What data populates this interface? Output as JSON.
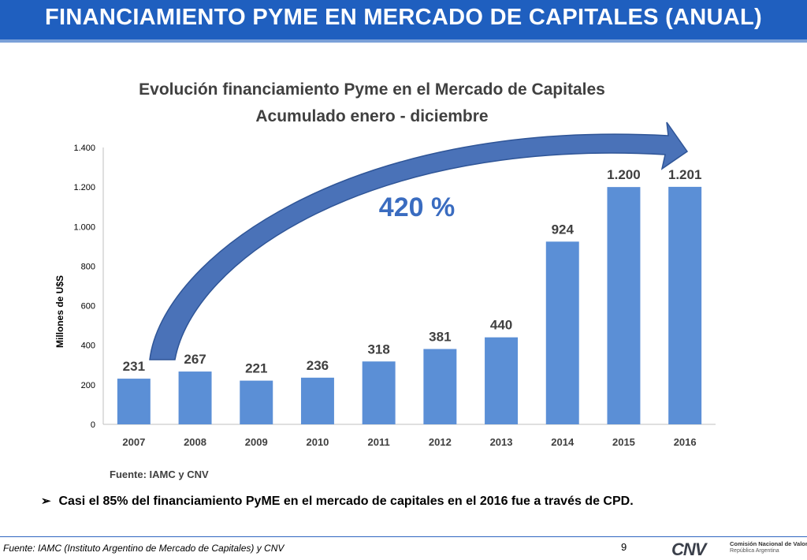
{
  "slide": {
    "title": "FINANCIAMIENTO PYME EN MERCADO DE CAPITALES (ANUAL)",
    "bullet_marker": "➢",
    "bullet": "Casi el 85% del financiamiento PyME en el mercado de capitales en el 2016 fue a través de CPD.",
    "footer_source": "Fuente: IAMC (Instituto Argentino de Mercado de Capitales) y CNV",
    "page_number": "9",
    "logo_mark": "CNV",
    "logo_line1": "Comisión Nacional de Valores",
    "logo_line2": "República Argentina"
  },
  "colors": {
    "header_bg": "#1f5fbf",
    "bar": "#5b8fd6",
    "arrow": "#4a72b8",
    "title_text": "#404040",
    "annotation": "#3a6cc0"
  },
  "chart_data": {
    "type": "bar",
    "title": "Evolución financiamiento Pyme en el Mercado de Capitales",
    "subtitle": "Acumulado enero - diciembre",
    "ylabel": "Millones de U$S",
    "xlabel": "",
    "categories": [
      "2007",
      "2008",
      "2009",
      "2010",
      "2011",
      "2012",
      "2013",
      "2014",
      "2015",
      "2016"
    ],
    "values": [
      231,
      267,
      221,
      236,
      318,
      381,
      440,
      924,
      1200,
      1201
    ],
    "data_labels": [
      "231",
      "267",
      "221",
      "236",
      "318",
      "381",
      "440",
      "924",
      "1.200",
      "1.201"
    ],
    "ylim": [
      0,
      1400
    ],
    "yticks": [
      0,
      200,
      400,
      600,
      800,
      1000,
      1200,
      1400
    ],
    "ytick_labels": [
      "0",
      "200",
      "400",
      "600",
      "800",
      "1.000",
      "1.200",
      "1.400"
    ],
    "grid": false,
    "legend": "none",
    "annotation": "420 %",
    "source": "Fuente: IAMC y CNV"
  }
}
